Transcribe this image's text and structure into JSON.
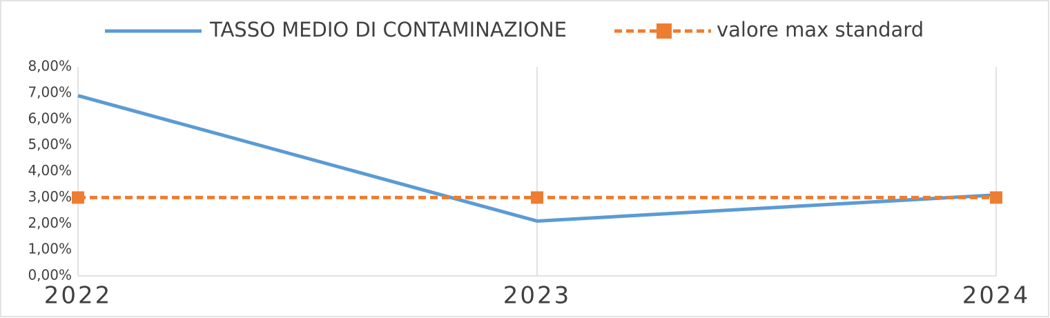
{
  "chart_data": {
    "type": "line",
    "categories": [
      "2022",
      "2023",
      "2024"
    ],
    "series": [
      {
        "name": "TASSO MEDIO DI CONTAMINAZIONE",
        "color": "#5b9bd5",
        "values": [
          6.9,
          2.1,
          3.1
        ],
        "dashed": false,
        "marker": "none"
      },
      {
        "name": "valore max standard",
        "color": "#ed7d31",
        "values": [
          3,
          3,
          3
        ],
        "dashed": true,
        "marker": "square"
      }
    ],
    "ylim": [
      0,
      8
    ],
    "yticks": [
      {
        "value": 0,
        "label": "0,00%"
      },
      {
        "value": 1,
        "label": "1,00%"
      },
      {
        "value": 2,
        "label": "2,00%"
      },
      {
        "value": 3,
        "label": "3,00%"
      },
      {
        "value": 4,
        "label": "4,00%"
      },
      {
        "value": 5,
        "label": "5,00%"
      },
      {
        "value": 6,
        "label": "6,00%"
      },
      {
        "value": 7,
        "label": "7,00%"
      },
      {
        "value": 8,
        "label": "8,00%"
      }
    ],
    "grid": "x",
    "legend": "top"
  }
}
